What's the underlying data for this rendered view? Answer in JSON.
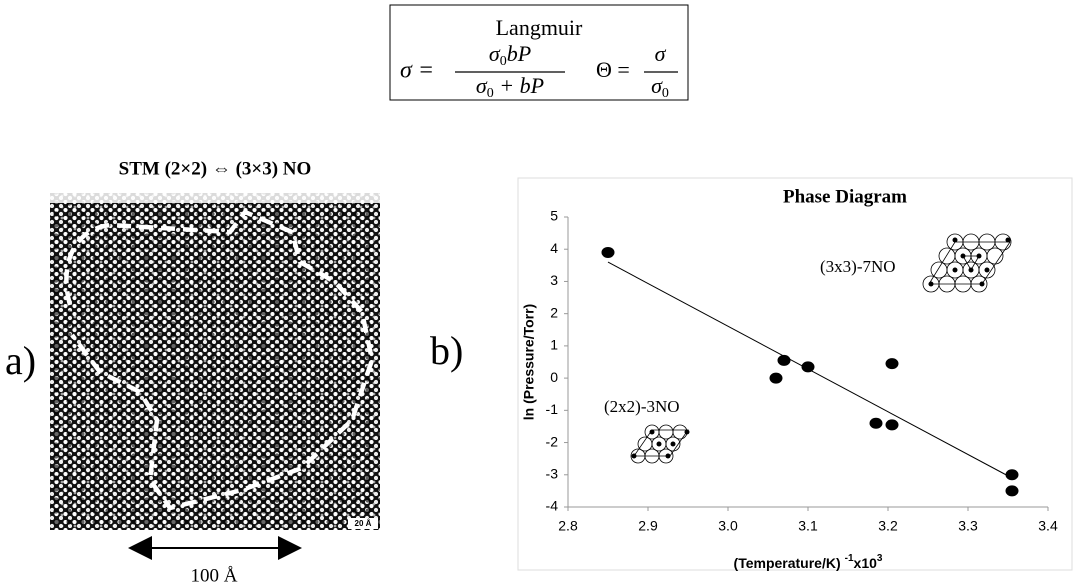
{
  "formula_box": {
    "title": "Langmuir",
    "eq1": {
      "lhs": "σ =",
      "num": [
        "σ",
        "0",
        "bP"
      ],
      "den": [
        "σ",
        "0",
        " + bP"
      ]
    },
    "eq2": {
      "lhs": "Θ =",
      "num": "σ",
      "den": [
        "σ",
        "0"
      ]
    }
  },
  "panel_a": {
    "title": "STM (2×2) ⇔ (3×3) NO",
    "label": "a)",
    "image_scale": "20 Å",
    "scale_bar": "100 Å"
  },
  "chart_data": {
    "type": "scatter",
    "panel_label": "b)",
    "title": "Phase Diagram",
    "y_label": "ln (Pressure/Torr)",
    "x_label": {
      "main": "(Temperature/K)",
      "exp": "-1",
      "mult": "x10",
      "mult_exp": "3"
    },
    "annotations": [
      "(3x3)-7NO",
      "(2x2)-3NO"
    ],
    "series": [
      {
        "color": "#000000",
        "x": [
          2.85,
          3.06,
          3.07,
          3.1,
          3.185,
          3.205,
          3.205,
          3.355,
          3.355
        ],
        "values": [
          3.9,
          0.0,
          0.55,
          0.35,
          -1.4,
          -1.45,
          0.45,
          -3.0,
          -3.5
        ]
      }
    ],
    "fit": {
      "x": [
        2.85,
        3.355
      ],
      "values": [
        3.6,
        -3.1
      ]
    },
    "xlim": [
      2.8,
      3.4
    ],
    "xticks": [
      2.8,
      2.9,
      {
        "value": 3,
        "label": "3.0"
      },
      3.1,
      3.2,
      3.3,
      3.4
    ],
    "ylim": [
      -4,
      5
    ],
    "yticks": [
      -4,
      -3,
      -2,
      -1,
      0,
      1,
      2,
      3,
      4,
      5
    ]
  }
}
